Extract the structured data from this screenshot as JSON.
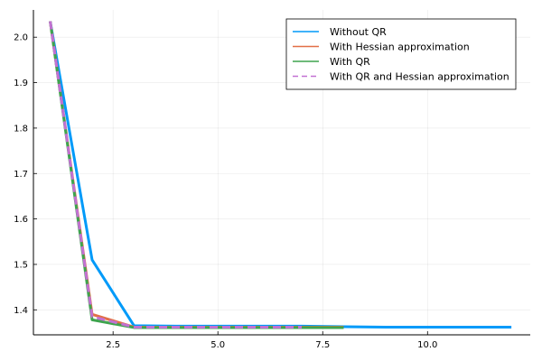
{
  "chart_data": {
    "type": "line",
    "title": "",
    "xlabel": "",
    "ylabel": "",
    "xlim": [
      0.6,
      12.45
    ],
    "ylim": [
      1.345,
      2.06
    ],
    "x_ticks": [
      2.5,
      5.0,
      7.5,
      10.0
    ],
    "x_tick_labels": [
      "2.5",
      "5.0",
      "7.5",
      "10.0"
    ],
    "y_ticks": [
      1.4,
      1.5,
      1.6,
      1.7,
      1.8,
      1.9,
      2.0
    ],
    "y_tick_labels": [
      "1.4",
      "1.5",
      "1.6",
      "1.7",
      "1.8",
      "1.9",
      "2.0"
    ],
    "grid": true,
    "legend_position": "top-right",
    "series": [
      {
        "name": "Without QR",
        "color": "#009AF9",
        "dash": "solid",
        "x": [
          1,
          2,
          3,
          4,
          5,
          6,
          7,
          8,
          9,
          10,
          11,
          12
        ],
        "y": [
          2.035,
          1.51,
          1.365,
          1.364,
          1.364,
          1.364,
          1.364,
          1.363,
          1.362,
          1.362,
          1.362,
          1.362
        ]
      },
      {
        "name": "With Hessian approximation",
        "color": "#E26F46",
        "dash": "solid",
        "x": [
          1,
          2,
          3,
          4,
          5,
          6,
          7,
          8
        ],
        "y": [
          2.035,
          1.39,
          1.362,
          1.362,
          1.362,
          1.362,
          1.362,
          1.362
        ]
      },
      {
        "name": "With QR",
        "color": "#3EA44E",
        "dash": "solid",
        "x": [
          1,
          2,
          3,
          4,
          5,
          6,
          7,
          8
        ],
        "y": [
          2.035,
          1.378,
          1.361,
          1.361,
          1.361,
          1.361,
          1.361,
          1.361
        ]
      },
      {
        "name": "With QR and Hessian approximation",
        "color": "#C271D2",
        "dash": "dashed",
        "x": [
          1,
          2,
          3,
          4,
          5,
          6,
          7
        ],
        "y": [
          2.035,
          1.385,
          1.362,
          1.362,
          1.362,
          1.362,
          1.362
        ]
      }
    ]
  }
}
